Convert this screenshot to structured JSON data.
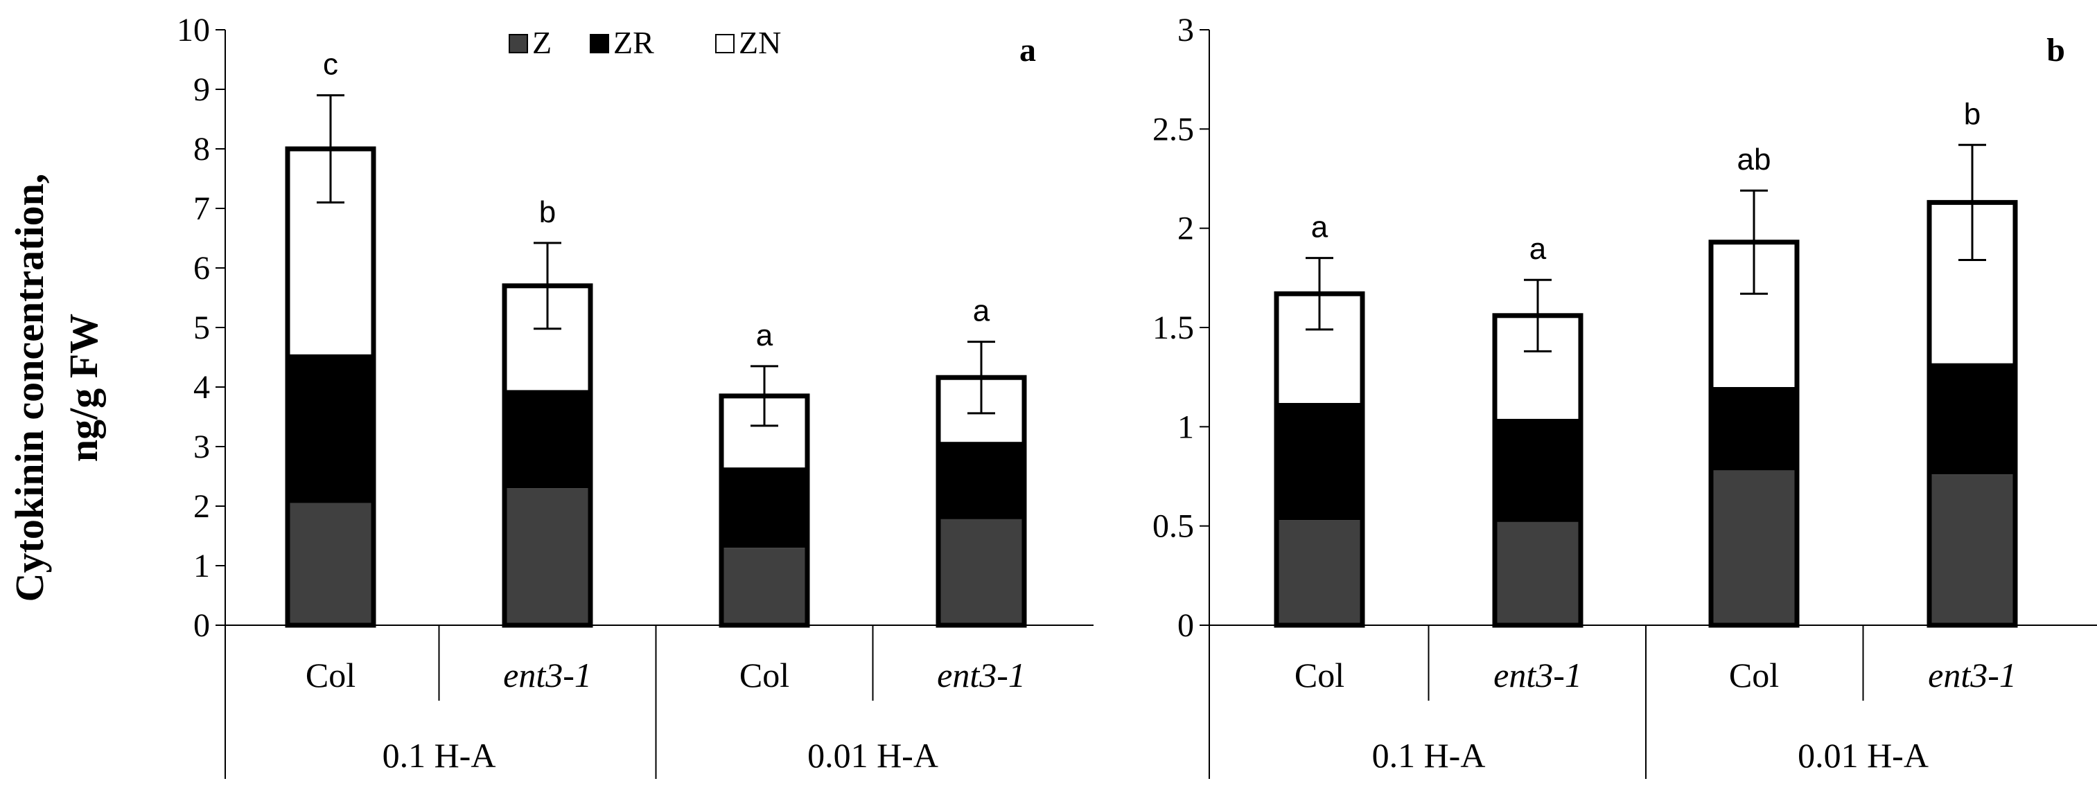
{
  "figure": {
    "ylabel_line1": "Cytokinin concentration,",
    "ylabel_line2": "ng/g FW"
  },
  "legend": [
    {
      "key": "Z",
      "label": "Z",
      "color": "#404040"
    },
    {
      "key": "ZR",
      "label": "ZR",
      "color": "#000000"
    },
    {
      "key": "ZN",
      "label": "ZN",
      "color": "#ffffff"
    }
  ],
  "chart_data": [
    {
      "type": "bar",
      "stacked": true,
      "panel": "a",
      "ylim": [
        0,
        10
      ],
      "ticks": [
        0,
        1,
        2,
        3,
        4,
        5,
        6,
        7,
        8,
        9,
        10
      ],
      "tick_labels": [
        "0",
        "1",
        "2",
        "3",
        "4",
        "5",
        "6",
        "7",
        "8",
        "9",
        "10"
      ],
      "categories": [
        "Col",
        "ent3-1",
        "Col",
        "ent3-1"
      ],
      "italic_categories": [
        false,
        true,
        false,
        true
      ],
      "groups": [
        {
          "label": "0.1 H-A",
          "span": [
            0,
            1
          ]
        },
        {
          "label": "0.01 H-A",
          "span": [
            2,
            3
          ]
        }
      ],
      "series": [
        {
          "name": "Z",
          "values": [
            2.05,
            2.3,
            1.3,
            1.78
          ]
        },
        {
          "name": "ZR",
          "values": [
            2.5,
            1.65,
            1.35,
            1.3
          ]
        },
        {
          "name": "ZN",
          "values": [
            3.45,
            1.75,
            1.2,
            1.08
          ]
        }
      ],
      "totals": [
        8.0,
        5.7,
        3.85,
        4.16
      ],
      "error": [
        0.9,
        0.72,
        0.5,
        0.6
      ],
      "significance": [
        "c",
        "b",
        "a",
        "a"
      ]
    },
    {
      "type": "bar",
      "stacked": true,
      "panel": "b",
      "ylim": [
        0,
        3
      ],
      "ticks": [
        0,
        0.5,
        1,
        1.5,
        2,
        2.5,
        3
      ],
      "tick_labels": [
        "0",
        "0.5",
        "1",
        "1.5",
        "2",
        "2.5",
        "3"
      ],
      "categories": [
        "Col",
        "ent3-1",
        "Col",
        "ent3-1"
      ],
      "italic_categories": [
        false,
        true,
        false,
        true
      ],
      "groups": [
        {
          "label": "0.1 H-A",
          "span": [
            0,
            1
          ]
        },
        {
          "label": "0.01 H-A",
          "span": [
            2,
            3
          ]
        }
      ],
      "series": [
        {
          "name": "Z",
          "values": [
            0.53,
            0.52,
            0.78,
            0.76
          ]
        },
        {
          "name": "ZR",
          "values": [
            0.59,
            0.52,
            0.42,
            0.56
          ]
        },
        {
          "name": "ZN",
          "values": [
            0.55,
            0.52,
            0.73,
            0.81
          ]
        }
      ],
      "totals": [
        1.67,
        1.56,
        1.93,
        2.13
      ],
      "error": [
        0.18,
        0.18,
        0.26,
        0.29
      ],
      "significance": [
        "a",
        "a",
        "ab",
        "b"
      ]
    }
  ]
}
